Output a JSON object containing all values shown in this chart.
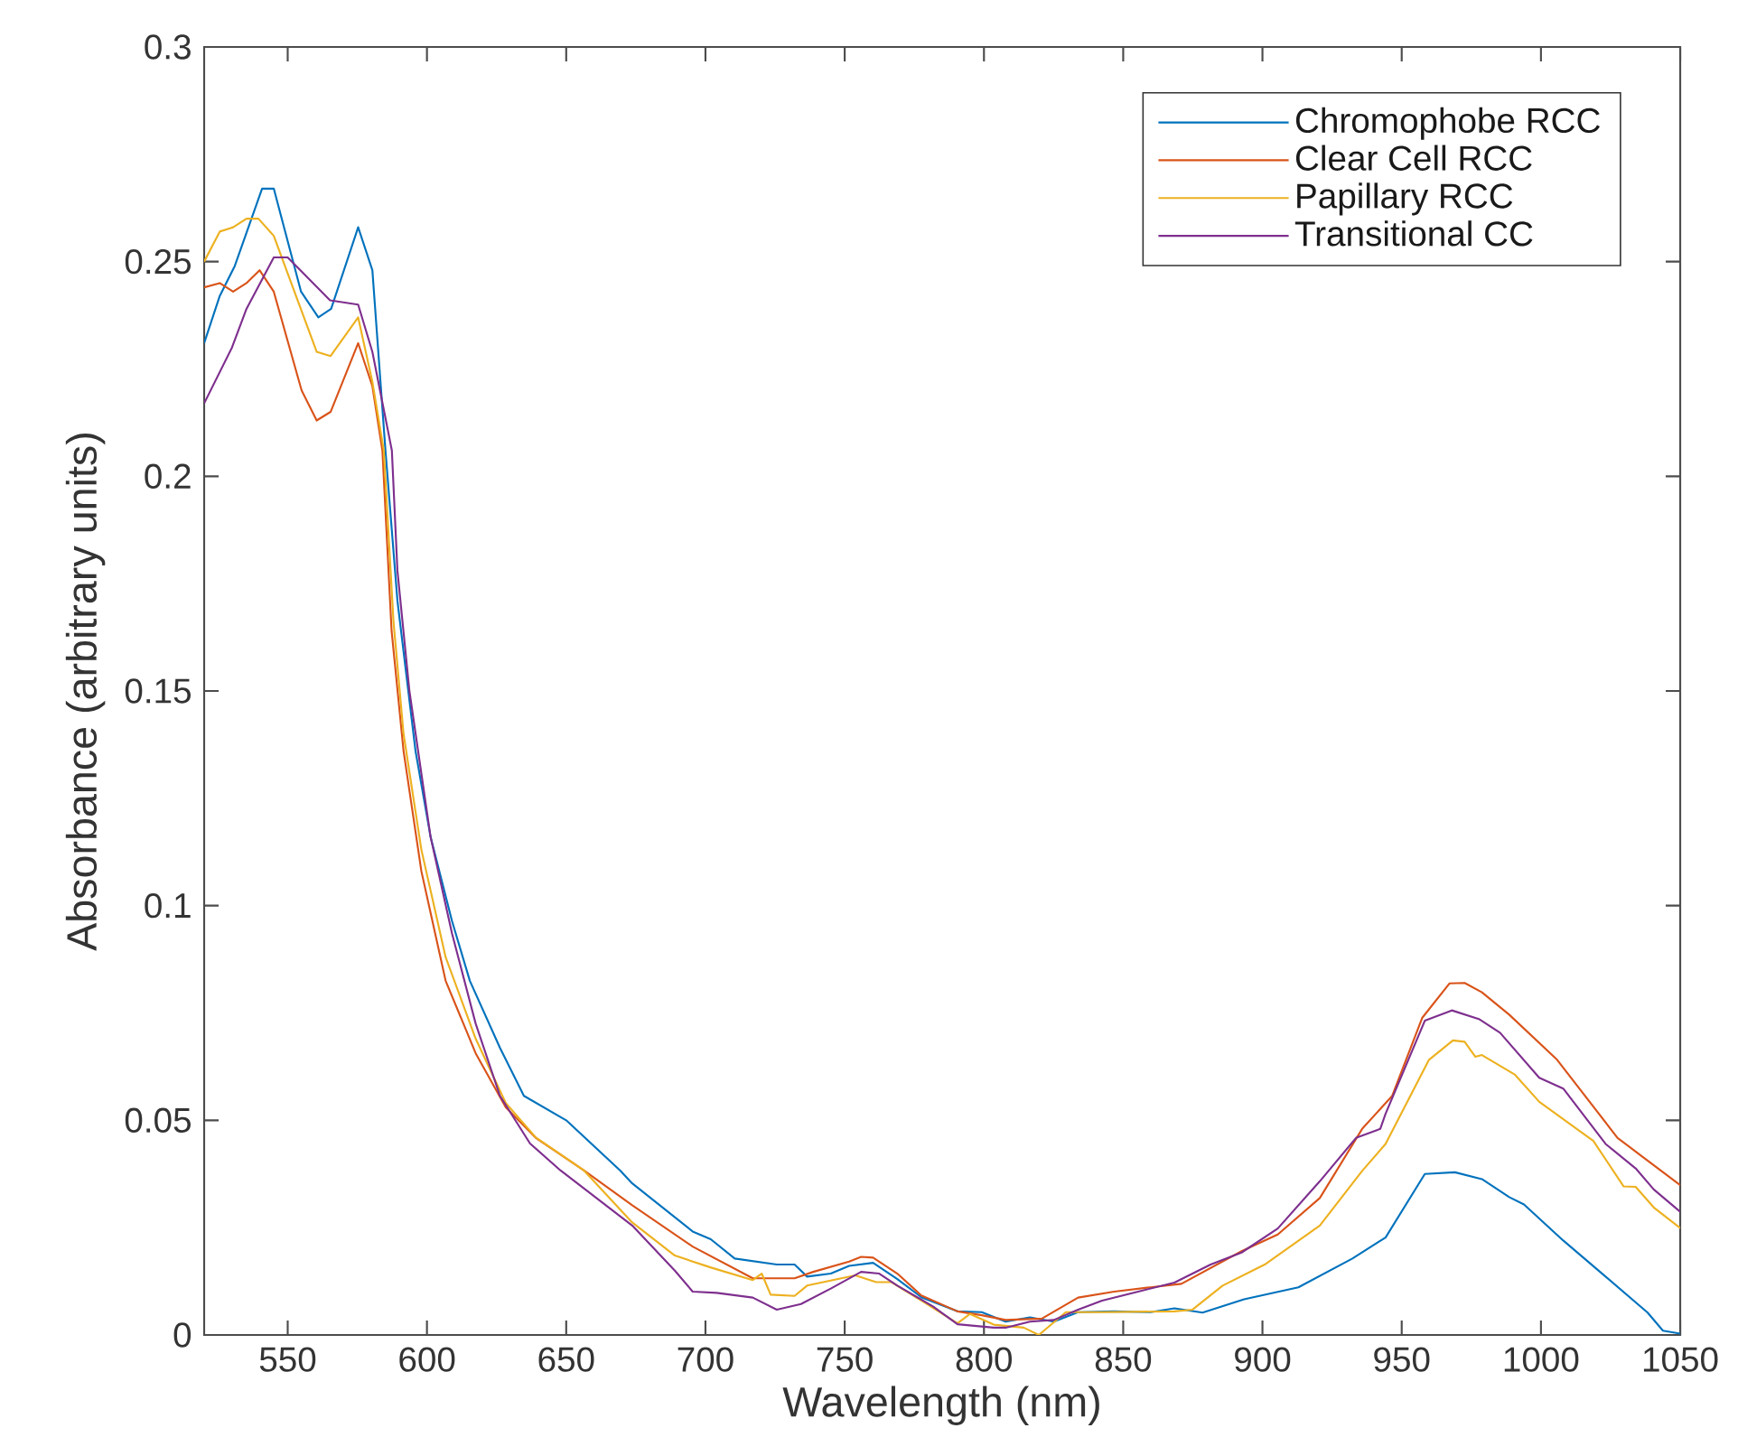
{
  "chart_data": {
    "type": "line",
    "xlabel": "Wavelength (nm)",
    "ylabel": "Absorbance (arbitrary units)",
    "xlim": [
      520,
      1050
    ],
    "ylim": [
      0,
      0.3
    ],
    "xticks": [
      550,
      600,
      650,
      700,
      750,
      800,
      850,
      900,
      950,
      1000,
      1050
    ],
    "yticks": [
      0,
      0.05,
      0.1,
      0.15,
      0.2,
      0.25,
      0.3
    ],
    "grid": false,
    "legend": "top right",
    "marker": "none",
    "line_style": "solid",
    "series": [
      {
        "name": "Chromophobe RCC",
        "color": "#0072bd",
        "x": [
          520,
          525.6,
          531,
          540.8,
          545,
          554.8,
          561,
          565.6,
          575.3,
          580.4,
          585.1,
          589.4,
          595.9,
          601.3,
          609,
          615.4,
          626.2,
          634.8,
          650,
          669.4,
          673.7,
          695.4,
          701.9,
          710.5,
          725.6,
          732,
          736.5,
          745,
          751.6,
          760.2,
          768.9,
          777.5,
          790.5,
          799.2,
          807.8,
          816.5,
          825.1,
          833.8,
          846.8,
          859.8,
          868.4,
          878.5,
          893.4,
          912.9,
          932.3,
          944.2,
          958.3,
          969.1,
          978.8,
          988.6,
          993.9,
          1008,
          1023.2,
          1038.3,
          1043.8,
          1050
        ],
        "values": [
          0.231,
          0.242,
          0.249,
          0.267,
          0.267,
          0.243,
          0.237,
          0.239,
          0.258,
          0.248,
          0.206,
          0.171,
          0.136,
          0.116,
          0.0964,
          0.0825,
          0.0669,
          0.0557,
          0.05,
          0.0383,
          0.0353,
          0.0241,
          0.0223,
          0.0178,
          0.0164,
          0.0164,
          0.0136,
          0.0143,
          0.0161,
          0.0168,
          0.013,
          0.0088,
          0.0055,
          0.0053,
          0.0031,
          0.0041,
          0.0031,
          0.0053,
          0.0055,
          0.0053,
          0.0062,
          0.0052,
          0.0083,
          0.0111,
          0.0178,
          0.0227,
          0.0375,
          0.0379,
          0.0363,
          0.0321,
          0.0304,
          0.022,
          0.0136,
          0.0052,
          0.001,
          0.0003
        ]
      },
      {
        "name": "Clear Cell RCC",
        "color": "#d95319",
        "x": [
          520,
          525.6,
          530.4,
          535.2,
          539.9,
          545,
          555,
          560.4,
          565.4,
          575.3,
          580.4,
          584,
          587.3,
          591.6,
          598,
          606.7,
          617.5,
          628.3,
          639.1,
          656.4,
          673.7,
          695.4,
          717,
          732,
          738.7,
          751.6,
          755.9,
          760.2,
          768.9,
          777.5,
          790.5,
          799.2,
          807.8,
          820.8,
          833.8,
          846.8,
          859.8,
          870.9,
          892.5,
          905.5,
          920.6,
          935.8,
          946.6,
          957.4,
          967.2,
          972.6,
          978.8,
          988.6,
          1005.8,
          1027.5,
          1036.1,
          1050
        ],
        "values": [
          0.244,
          0.245,
          0.243,
          0.245,
          0.248,
          0.243,
          0.22,
          0.213,
          0.215,
          0.231,
          0.221,
          0.206,
          0.164,
          0.136,
          0.108,
          0.0825,
          0.0656,
          0.053,
          0.0459,
          0.0383,
          0.0302,
          0.0206,
          0.0132,
          0.0132,
          0.0147,
          0.0171,
          0.0182,
          0.018,
          0.0143,
          0.0092,
          0.0055,
          0.0046,
          0.0035,
          0.0038,
          0.0087,
          0.0101,
          0.0111,
          0.0119,
          0.0195,
          0.0234,
          0.0319,
          0.048,
          0.0557,
          0.0739,
          0.0819,
          0.082,
          0.0798,
          0.0746,
          0.0641,
          0.0459,
          0.0417,
          0.0349
        ]
      },
      {
        "name": "Papillary RCC",
        "color": "#edb120",
        "x": [
          520,
          525.6,
          530.4,
          535.2,
          539.5,
          545,
          560.4,
          565.4,
          575.3,
          580.4,
          584.5,
          588,
          591.6,
          598,
          606.7,
          617.5,
          628.3,
          639.1,
          656.4,
          673.7,
          689,
          702,
          717,
          720.2,
          723.4,
          732,
          736.5,
          753.8,
          761.3,
          766.8,
          777.5,
          790.5,
          795,
          803.5,
          814.3,
          819.7,
          829.4,
          842.4,
          868.4,
          874.9,
          885.7,
          900.8,
          920.6,
          935.8,
          944.2,
          959.8,
          968.4,
          972.6,
          976.4,
          978.8,
          990.7,
          999.4,
          1018.8,
          1029.7,
          1034,
          1040.5,
          1050
        ],
        "values": [
          0.25,
          0.257,
          0.258,
          0.26,
          0.26,
          0.256,
          0.229,
          0.228,
          0.237,
          0.222,
          0.206,
          0.166,
          0.14,
          0.113,
          0.088,
          0.069,
          0.054,
          0.046,
          0.0383,
          0.0262,
          0.0185,
          0.0157,
          0.0128,
          0.0143,
          0.0094,
          0.0091,
          0.0115,
          0.0139,
          0.0123,
          0.0123,
          0.008,
          0.0027,
          0.0049,
          0.0024,
          0.0017,
          0,
          0.0053,
          0.0053,
          0.0055,
          0.0059,
          0.0115,
          0.0164,
          0.0255,
          0.0382,
          0.0445,
          0.0641,
          0.0686,
          0.0683,
          0.0648,
          0.0652,
          0.0606,
          0.0543,
          0.0452,
          0.0346,
          0.0345,
          0.0297,
          0.0249
        ]
      },
      {
        "name": "Transitional CC",
        "color": "#7e2f8e",
        "x": [
          520,
          530,
          535.2,
          545,
          550,
          565.2,
          575.3,
          580.4,
          587.4,
          589.4,
          593.7,
          601.3,
          609,
          617.5,
          626.2,
          637,
          648,
          673.7,
          689,
          695.4,
          704,
          717,
          725.6,
          734.3,
          745,
          755.9,
          762.4,
          768.9,
          781.8,
          790.5,
          803.5,
          807.8,
          816.5,
          825.1,
          833.8,
          842.4,
          855.4,
          868.4,
          881.4,
          892.5,
          905.5,
          920.6,
          933.6,
          942.3,
          944.2,
          958.3,
          968,
          977.7,
          985.3,
          999.4,
          1008,
          1023.2,
          1034,
          1040.5,
          1050
        ],
        "values": [
          0.217,
          0.23,
          0.239,
          0.251,
          0.251,
          0.241,
          0.24,
          0.229,
          0.206,
          0.178,
          0.15,
          0.116,
          0.0935,
          0.0725,
          0.0557,
          0.0446,
          0.0383,
          0.0255,
          0.015,
          0.0101,
          0.0098,
          0.0087,
          0.0059,
          0.0072,
          0.0108,
          0.0147,
          0.0143,
          0.0115,
          0.0066,
          0.0025,
          0.0017,
          0.0017,
          0.0031,
          0.0035,
          0.0059,
          0.008,
          0.0101,
          0.0122,
          0.0164,
          0.0192,
          0.0248,
          0.0358,
          0.0459,
          0.048,
          0.0515,
          0.0732,
          0.0756,
          0.0736,
          0.0704,
          0.0599,
          0.0574,
          0.0445,
          0.0388,
          0.0339,
          0.0287
        ]
      }
    ]
  }
}
